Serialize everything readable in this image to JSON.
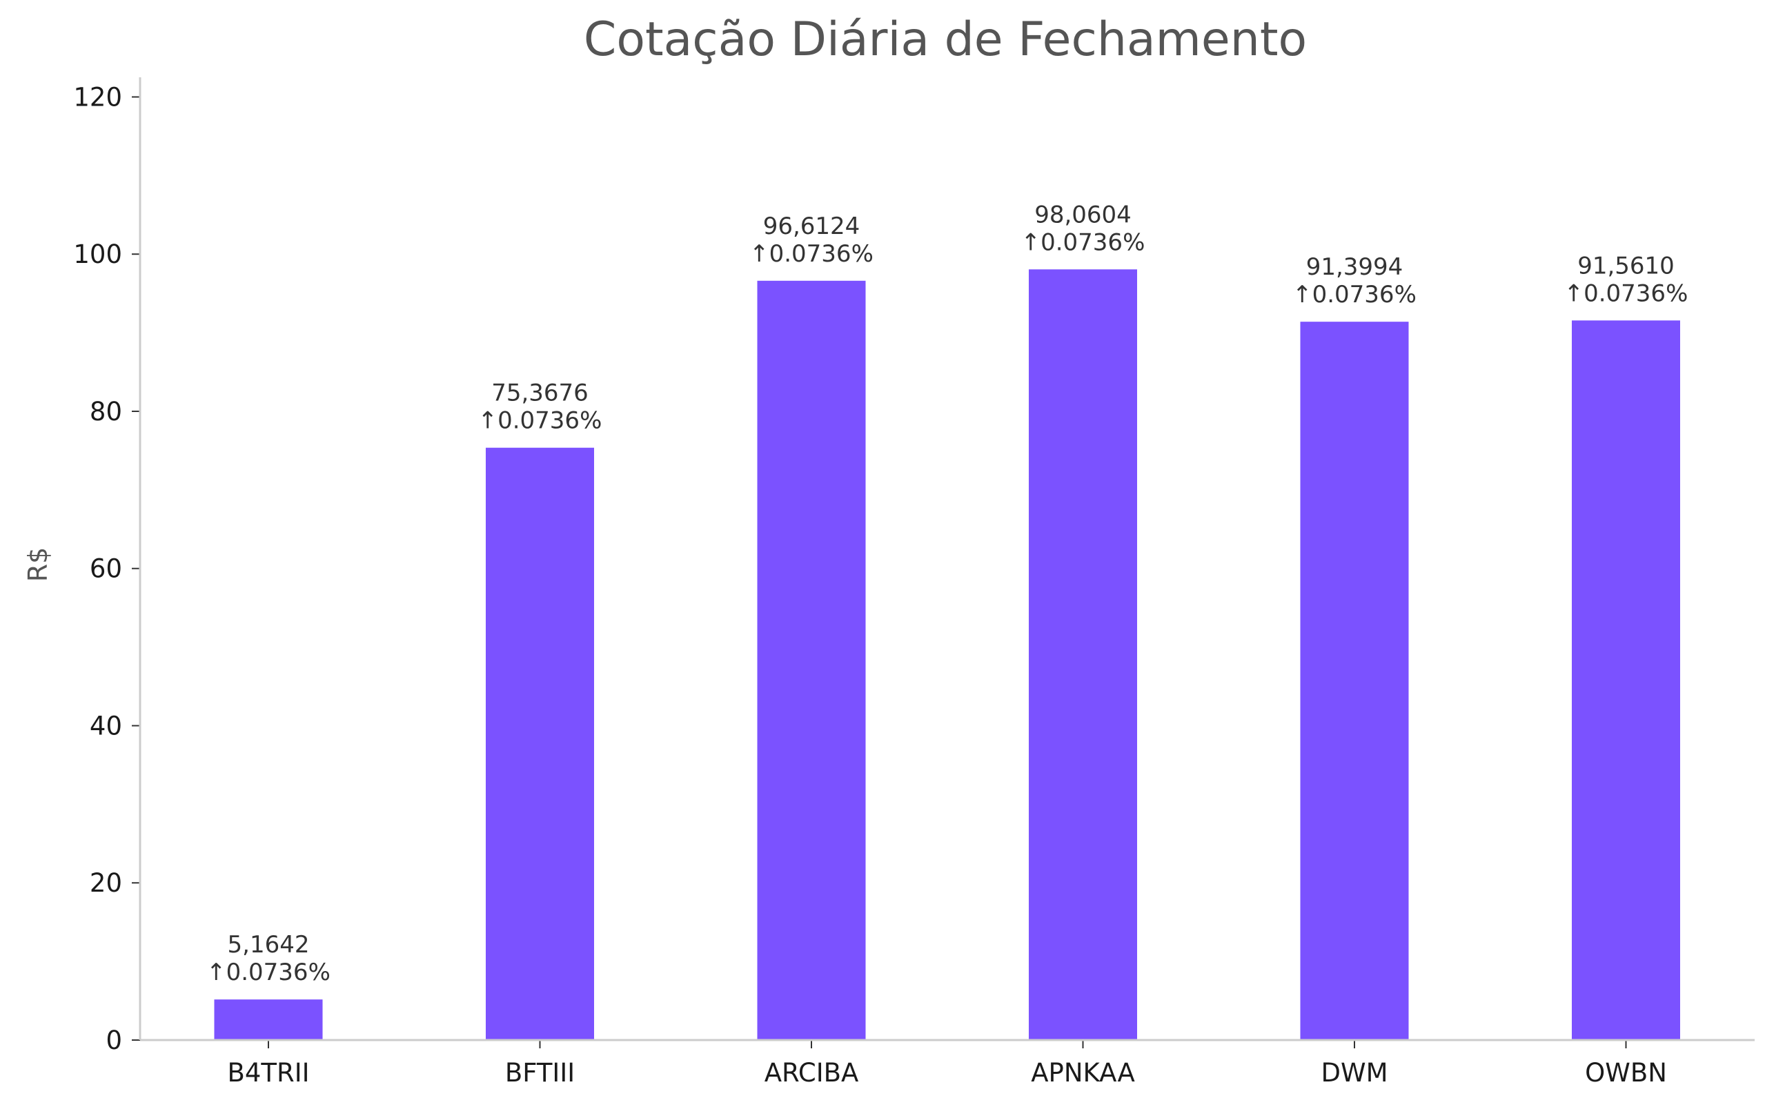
{
  "chart_data": {
    "type": "bar",
    "title": "Cotação Diária de Fechamento",
    "xlabel": "",
    "ylabel": "R$",
    "ylim": [
      0,
      122.5
    ],
    "yticks": [
      0,
      20,
      40,
      60,
      80,
      100,
      120
    ],
    "categories": [
      "B4TRII",
      "BFTIII",
      "ARCIBA",
      "APNKAA",
      "DWM",
      "OWBN"
    ],
    "values": [
      5.1642,
      75.3676,
      96.6124,
      98.0604,
      91.3994,
      91.561
    ],
    "value_labels": [
      "5,1642",
      "75,3676",
      "96,6124",
      "98,0604",
      "91,3994",
      "91,5610"
    ],
    "change_labels": [
      "↑0.0736%",
      "↑0.0736%",
      "↑0.0736%",
      "↑0.0736%",
      "↑0.0736%",
      "↑0.0736%"
    ],
    "grid": false,
    "legend": "none",
    "colors": {
      "bar": "#7b52ff",
      "title": "#555555",
      "ylabel": "#555555",
      "tick_label": "#1a1a1a",
      "data_label": "#333333",
      "axis": "#cccccc"
    }
  }
}
